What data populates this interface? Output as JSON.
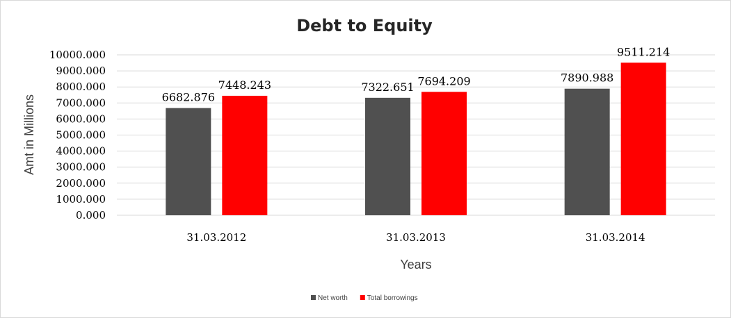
{
  "chart_data": {
    "type": "bar",
    "title": "Debt to Equity",
    "xlabel": "Years",
    "ylabel": "Amt in Millions",
    "categories": [
      "31.03.2012",
      "31.03.2013",
      "31.03.2014"
    ],
    "series": [
      {
        "name": "Net worth",
        "color": "#505050",
        "values": [
          6682.876,
          7322.651,
          7890.988
        ],
        "labels": [
          "6682.876",
          "7322.651",
          "7890.988"
        ]
      },
      {
        "name": "Total borrowings",
        "color": "#ff0000",
        "values": [
          7448.243,
          7694.209,
          9511.214
        ],
        "labels": [
          "7448.243",
          "7694.209",
          "9511.214"
        ]
      }
    ],
    "ylim": [
      0,
      10000
    ],
    "yticks": [
      0,
      1000,
      2000,
      3000,
      4000,
      5000,
      6000,
      7000,
      8000,
      9000,
      10000
    ],
    "ytick_labels": [
      "0.000",
      "1000.000",
      "2000.000",
      "3000.000",
      "4000.000",
      "5000.000",
      "6000.000",
      "7000.000",
      "8000.000",
      "9000.000",
      "10000.000"
    ],
    "grid": true,
    "legend": "bottom"
  }
}
